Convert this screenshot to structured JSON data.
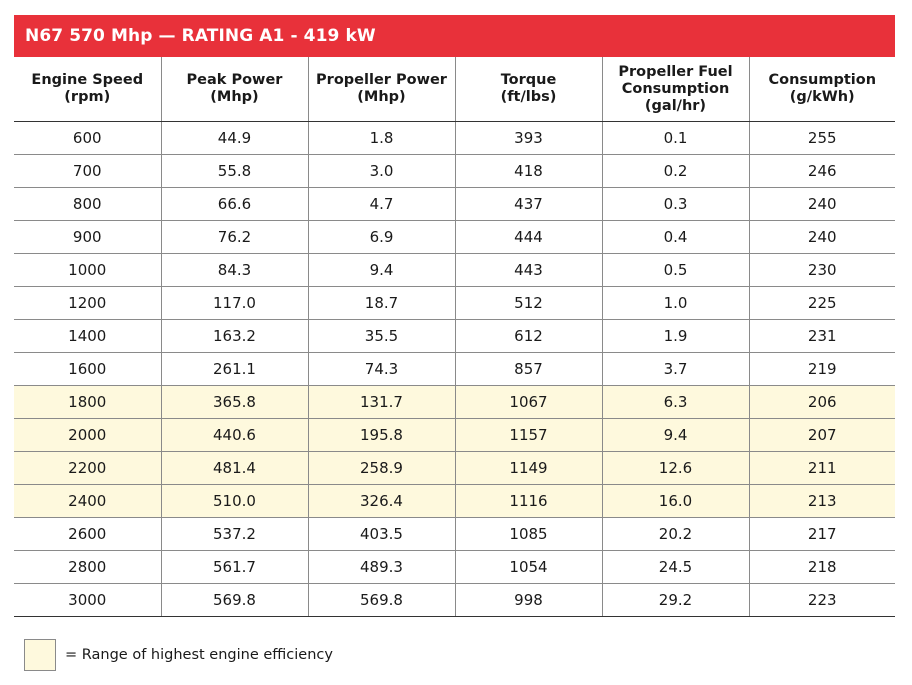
{
  "title": "N67 570 Mhp — RATING A1 - 419 kW",
  "colors": {
    "title_bar": "#e8313a",
    "highlight": "#fef9dd"
  },
  "table": {
    "headers": [
      "Engine Speed\n(rpm)",
      "Peak Power\n(Mhp)",
      "Propeller Power\n(Mhp)",
      "Torque\n(ft/lbs)",
      "Propeller Fuel\nConsumption\n(gal/hr)",
      "Consumption\n(g/kWh)"
    ],
    "rows": [
      {
        "cells": [
          "600",
          "44.9",
          "1.8",
          "393",
          "0.1",
          "255"
        ],
        "highlight": false
      },
      {
        "cells": [
          "700",
          "55.8",
          "3.0",
          "418",
          "0.2",
          "246"
        ],
        "highlight": false
      },
      {
        "cells": [
          "800",
          "66.6",
          "4.7",
          "437",
          "0.3",
          "240"
        ],
        "highlight": false
      },
      {
        "cells": [
          "900",
          "76.2",
          "6.9",
          "444",
          "0.4",
          "240"
        ],
        "highlight": false
      },
      {
        "cells": [
          "1000",
          "84.3",
          "9.4",
          "443",
          "0.5",
          "230"
        ],
        "highlight": false
      },
      {
        "cells": [
          "1200",
          "117.0",
          "18.7",
          "512",
          "1.0",
          "225"
        ],
        "highlight": false
      },
      {
        "cells": [
          "1400",
          "163.2",
          "35.5",
          "612",
          "1.9",
          "231"
        ],
        "highlight": false
      },
      {
        "cells": [
          "1600",
          "261.1",
          "74.3",
          "857",
          "3.7",
          "219"
        ],
        "highlight": false
      },
      {
        "cells": [
          "1800",
          "365.8",
          "131.7",
          "1067",
          "6.3",
          "206"
        ],
        "highlight": true
      },
      {
        "cells": [
          "2000",
          "440.6",
          "195.8",
          "1157",
          "9.4",
          "207"
        ],
        "highlight": true
      },
      {
        "cells": [
          "2200",
          "481.4",
          "258.9",
          "1149",
          "12.6",
          "211"
        ],
        "highlight": true
      },
      {
        "cells": [
          "2400",
          "510.0",
          "326.4",
          "1116",
          "16.0",
          "213"
        ],
        "highlight": true
      },
      {
        "cells": [
          "2600",
          "537.2",
          "403.5",
          "1085",
          "20.2",
          "217"
        ],
        "highlight": false
      },
      {
        "cells": [
          "2800",
          "561.7",
          "489.3",
          "1054",
          "24.5",
          "218"
        ],
        "highlight": false
      },
      {
        "cells": [
          "3000",
          "569.8",
          "569.8",
          "998",
          "29.2",
          "223"
        ],
        "highlight": false
      }
    ]
  },
  "legend": {
    "text": "= Range of highest engine efficiency"
  }
}
